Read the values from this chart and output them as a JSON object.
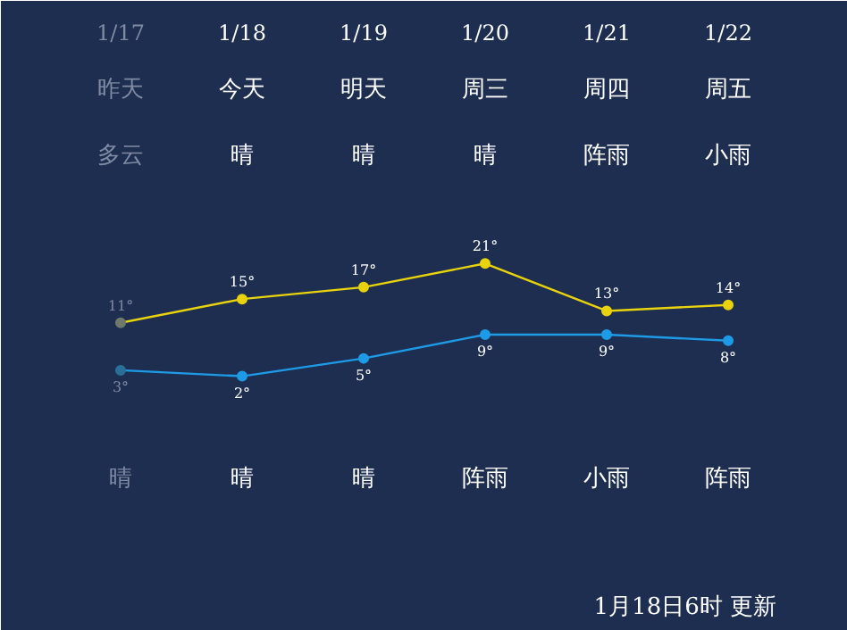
{
  "chart_data": {
    "type": "line",
    "categories": [
      "1/17",
      "1/18",
      "1/19",
      "1/20",
      "1/21",
      "1/22"
    ],
    "series": [
      {
        "color": "#e8d30c",
        "colors": [
          "#6f7a6a",
          "#e8d30c",
          "#e8d30c",
          "#e8d30c",
          "#e8d30c",
          "#e8d30c"
        ],
        "values": [
          11,
          15,
          17,
          21,
          13,
          14
        ],
        "value_labels": [
          "11°",
          "15°",
          "17°",
          "21°",
          "13°",
          "14°"
        ]
      },
      {
        "color": "#1e9be6",
        "colors": [
          "#2a6f98",
          "#1e9be6",
          "#1e9be6",
          "#1e9be6",
          "#1e9be6",
          "#1e9be6"
        ],
        "values": [
          3,
          2,
          5,
          9,
          9,
          8
        ],
        "value_labels": [
          "3°",
          "2°",
          "5°",
          "9°",
          "9°",
          "8°"
        ]
      }
    ],
    "marker": "circle",
    "grid": false,
    "annotations": [
      "昨天",
      "今天",
      "明天",
      "周三",
      "周四",
      "周五",
      "多云",
      "晴",
      "晴",
      "晴",
      "阵雨",
      "小雨",
      "晴",
      "晴",
      "晴",
      "阵雨",
      "小雨",
      "阵雨",
      "1月18日6时 更新"
    ]
  }
}
